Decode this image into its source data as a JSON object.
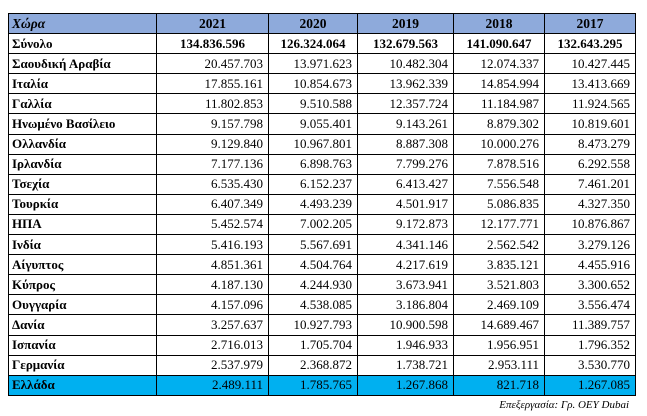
{
  "table": {
    "header": [
      "Χώρα",
      "2021",
      "2020",
      "2019",
      "2018",
      "2017"
    ],
    "rows": [
      {
        "country": "Σύνολο",
        "values": [
          "134.836.596",
          "126.324.064",
          "132.679.563",
          "141.090.647",
          "132.643.295"
        ]
      },
      {
        "country": "Σαουδική Αραβία",
        "values": [
          "20.457.703",
          "13.971.623",
          "10.482.304",
          "12.074.337",
          "10.427.445"
        ]
      },
      {
        "country": "Ιταλία",
        "values": [
          "17.855.161",
          "10.854.673",
          "13.962.339",
          "14.854.994",
          "13.413.669"
        ]
      },
      {
        "country": "Γαλλία",
        "values": [
          "11.802.853",
          "9.510.588",
          "12.357.724",
          "11.184.987",
          "11.924.565"
        ]
      },
      {
        "country": "Ηνωμένο Βασίλειο",
        "values": [
          "9.157.798",
          "9.055.401",
          "9.143.261",
          "8.879.302",
          "10.819.601"
        ]
      },
      {
        "country": "Ολλανδία",
        "values": [
          "9.129.840",
          "10.967.801",
          "8.887.308",
          "10.000.276",
          "8.473.279"
        ]
      },
      {
        "country": "Ιρλανδία",
        "values": [
          "7.177.136",
          "6.898.763",
          "7.799.276",
          "7.878.516",
          "6.292.558"
        ]
      },
      {
        "country": "Τσεχία",
        "values": [
          "6.535.430",
          "6.152.237",
          "6.413.427",
          "7.556.548",
          "7.461.201"
        ]
      },
      {
        "country": "Τουρκία",
        "values": [
          "6.407.349",
          "4.493.239",
          "4.501.917",
          "5.086.835",
          "4.327.350"
        ]
      },
      {
        "country": "ΗΠΑ",
        "values": [
          "5.452.574",
          "7.002.205",
          "9.172.873",
          "12.177.771",
          "10.876.867"
        ]
      },
      {
        "country": "Ινδία",
        "values": [
          "5.416.193",
          "5.567.691",
          "4.341.146",
          "2.562.542",
          "3.279.126"
        ]
      },
      {
        "country": "Αίγυπτος",
        "values": [
          "4.851.361",
          "4.504.764",
          "4.217.619",
          "3.835.121",
          "4.455.916"
        ]
      },
      {
        "country": "Κύπρος",
        "values": [
          "4.187.130",
          "4.244.930",
          "3.673.941",
          "3.521.803",
          "3.300.652"
        ]
      },
      {
        "country": "Ουγγαρία",
        "values": [
          "4.157.096",
          "4.538.085",
          "3.186.804",
          "2.469.109",
          "3.556.474"
        ]
      },
      {
        "country": "Δανία",
        "values": [
          "3.257.637",
          "10.927.793",
          "10.900.598",
          "14.689.467",
          "11.389.757"
        ]
      },
      {
        "country": "Ισπανία",
        "values": [
          "2.716.013",
          "1.705.704",
          "1.946.933",
          "1.956.951",
          "1.796.352"
        ]
      },
      {
        "country": "Γερμανία",
        "values": [
          "2.537.979",
          "2.368.872",
          "1.738.721",
          "2.953.111",
          "3.530.770"
        ]
      },
      {
        "country": "Ελλάδα",
        "values": [
          "2.489.111",
          "1.785.765",
          "1.267.868",
          "821.718",
          "1.267.085"
        ]
      }
    ]
  },
  "source_note": "Επεξεργασία: Γρ. ΟΕΥ Dubai",
  "colors": {
    "header_bg": "#8eaadb",
    "highlight_bg": "#00b0f0",
    "border": "#000000"
  }
}
